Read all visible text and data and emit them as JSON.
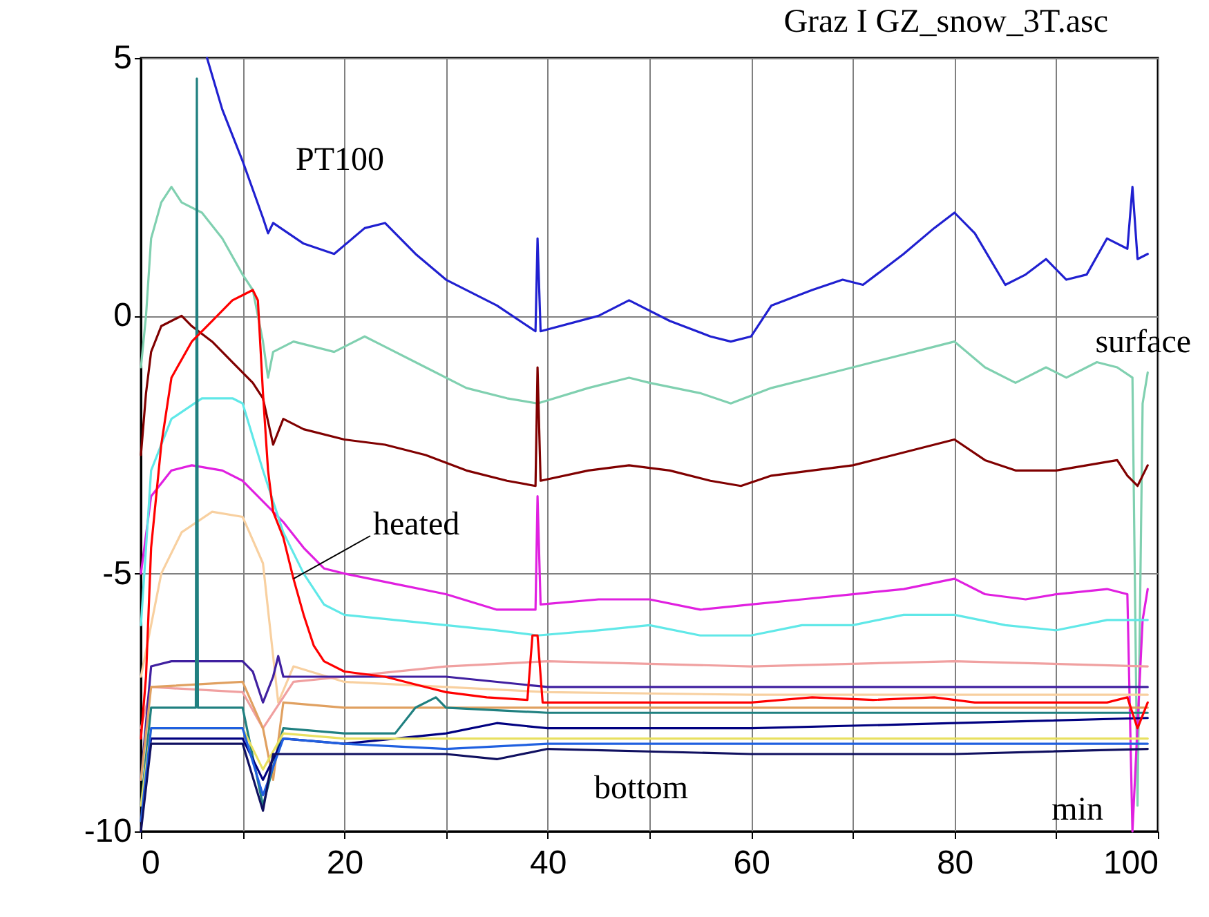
{
  "chart_data": {
    "type": "line",
    "title": "Graz I  GZ_snow_3T.asc",
    "xlabel": "min",
    "xlim": [
      0,
      100
    ],
    "ylim": [
      -10,
      5
    ],
    "xticks": [
      0,
      {
        "value": 10,
        "label": null
      },
      20,
      {
        "value": 30,
        "label": null
      },
      40,
      {
        "value": 50,
        "label": null
      },
      60,
      {
        "value": 70,
        "label": null
      },
      80,
      {
        "value": 90,
        "label": null
      },
      100
    ],
    "yticks": [
      -10,
      -5,
      0,
      5
    ],
    "grid": true,
    "legend": false,
    "marker": "none",
    "line_style": "solid",
    "annotations": [
      "PT100",
      "surface",
      {
        "text": "heated",
        "x": 15,
        "y": -5.1
      },
      "bottom"
    ],
    "series": [
      {
        "color": "#2020d0",
        "x": [
          6.5,
          8,
          10,
          12,
          12.5,
          13,
          16,
          19,
          22,
          24,
          27,
          30,
          35,
          38.8,
          39,
          39.3,
          45,
          48,
          52,
          56,
          58,
          60,
          62,
          66,
          69,
          71,
          75,
          78,
          80,
          82,
          85,
          87,
          89,
          91,
          93,
          95,
          97,
          97.5,
          98,
          99
        ],
        "values": [
          5,
          4,
          3,
          1.9,
          1.6,
          1.8,
          1.4,
          1.2,
          1.7,
          1.8,
          1.2,
          0.7,
          0.2,
          -0.3,
          1.5,
          -0.3,
          0,
          0.3,
          -0.1,
          -0.4,
          -0.5,
          -0.4,
          0.2,
          0.5,
          0.7,
          0.6,
          1.2,
          1.7,
          2.0,
          1.6,
          0.6,
          0.8,
          1.1,
          0.7,
          0.8,
          1.5,
          1.3,
          2.5,
          1.1,
          1.2
        ]
      },
      {
        "color": "#80d0b0",
        "x": [
          0,
          0.5,
          1,
          2,
          3,
          4,
          6,
          8,
          10,
          11,
          12,
          12.5,
          13,
          15,
          19,
          22,
          24,
          28,
          32,
          36,
          39,
          44,
          48,
          50,
          55,
          58,
          62,
          66,
          70,
          74,
          78,
          80,
          83,
          86,
          89,
          91,
          94,
          96,
          97.5,
          98,
          98.5,
          99
        ],
        "values": [
          -1,
          0,
          1.5,
          2.2,
          2.5,
          2.2,
          2.0,
          1.5,
          0.8,
          0.5,
          -0.5,
          -1.2,
          -0.7,
          -0.5,
          -0.7,
          -0.4,
          -0.6,
          -1.0,
          -1.4,
          -1.6,
          -1.7,
          -1.4,
          -1.2,
          -1.3,
          -1.5,
          -1.7,
          -1.4,
          -1.2,
          -1.0,
          -0.8,
          -0.6,
          -0.5,
          -1.0,
          -1.3,
          -1.0,
          -1.2,
          -0.9,
          -1.0,
          -1.2,
          -9.5,
          -1.7,
          -1.1
        ]
      },
      {
        "color": "#800000",
        "x": [
          0,
          0.5,
          1,
          2,
          3,
          4,
          5,
          7,
          9,
          11,
          12,
          13,
          14,
          16,
          20,
          24,
          28,
          32,
          36,
          38.8,
          39,
          39.3,
          44,
          48,
          52,
          56,
          59,
          62,
          66,
          70,
          74,
          78,
          80,
          83,
          86,
          90,
          93,
          96,
          97,
          98,
          99
        ],
        "values": [
          -2.7,
          -1.5,
          -0.7,
          -0.2,
          -0.1,
          0.0,
          -0.2,
          -0.5,
          -0.9,
          -1.3,
          -1.6,
          -2.5,
          -2.0,
          -2.2,
          -2.4,
          -2.5,
          -2.7,
          -3.0,
          -3.2,
          -3.3,
          -1.0,
          -3.2,
          -3.0,
          -2.9,
          -3.0,
          -3.2,
          -3.3,
          -3.1,
          -3.0,
          -2.9,
          -2.7,
          -2.5,
          -2.4,
          -2.8,
          -3.0,
          -3.0,
          -2.9,
          -2.8,
          -3.1,
          -3.3,
          -2.9
        ]
      },
      {
        "color": "#e020e0",
        "x": [
          0,
          1,
          3,
          5,
          8,
          10,
          12,
          14,
          16,
          18,
          20,
          25,
          30,
          35,
          38.8,
          39,
          39.3,
          45,
          50,
          55,
          60,
          65,
          70,
          75,
          80,
          83,
          87,
          90,
          95,
          97,
          97.5,
          98.5,
          99
        ],
        "values": [
          -5,
          -3.5,
          -3.0,
          -2.9,
          -3.0,
          -3.2,
          -3.6,
          -4.0,
          -4.5,
          -4.9,
          -5.0,
          -5.2,
          -5.4,
          -5.7,
          -5.7,
          -3.5,
          -5.6,
          -5.5,
          -5.5,
          -5.7,
          -5.6,
          -5.5,
          -5.4,
          -5.3,
          -5.1,
          -5.4,
          -5.5,
          -5.4,
          -5.3,
          -5.4,
          -10,
          -5.9,
          -5.3
        ]
      },
      {
        "color": "#60e8e8",
        "x": [
          0,
          1,
          3,
          6,
          9,
          10,
          12,
          14,
          16,
          18,
          20,
          25,
          30,
          35,
          39,
          45,
          50,
          55,
          60,
          65,
          70,
          75,
          80,
          85,
          90,
          95,
          99
        ],
        "values": [
          -6,
          -3,
          -2,
          -1.6,
          -1.6,
          -1.7,
          -3.0,
          -4.2,
          -5.0,
          -5.6,
          -5.8,
          -5.9,
          -6.0,
          -6.1,
          -6.2,
          -6.1,
          -6.0,
          -6.2,
          -6.2,
          -6.0,
          -6.0,
          -5.8,
          -5.8,
          -6.0,
          -6.1,
          -5.9,
          -5.9
        ]
      },
      {
        "color": "#f8d0a0",
        "x": [
          0,
          2,
          4,
          7,
          10,
          12,
          13.5,
          15,
          20,
          30,
          40,
          60,
          80,
          99
        ],
        "values": [
          -7,
          -5,
          -4.2,
          -3.8,
          -3.9,
          -4.8,
          -7.5,
          -6.8,
          -7.1,
          -7.2,
          -7.3,
          -7.35,
          -7.35,
          -7.35
        ]
      },
      {
        "color": "#f0a0a0",
        "x": [
          0,
          1,
          10,
          12,
          15,
          20,
          30,
          40,
          60,
          80,
          99
        ],
        "values": [
          -8,
          -7.2,
          -7.3,
          -8,
          -7.1,
          -7.0,
          -6.8,
          -6.7,
          -6.8,
          -6.7,
          -6.8
        ]
      },
      {
        "color": "#4020a0",
        "x": [
          0,
          1,
          3,
          10,
          11,
          12,
          13,
          13.5,
          14,
          20,
          30,
          40,
          60,
          80,
          99
        ],
        "values": [
          -9,
          -6.8,
          -6.7,
          -6.7,
          -6.9,
          -7.5,
          -7.0,
          -6.6,
          -7.0,
          -7.0,
          -7.0,
          -7.2,
          -7.2,
          -7.2,
          -7.2
        ]
      },
      {
        "color": "#e0a060",
        "x": [
          0,
          1,
          10,
          12,
          13,
          14,
          20,
          40,
          60,
          80,
          99
        ],
        "values": [
          -9,
          -7.2,
          -7.1,
          -8.0,
          -9.0,
          -7.5,
          -7.6,
          -7.6,
          -7.6,
          -7.6,
          -7.6
        ]
      },
      {
        "color": "#208080",
        "x": [
          0,
          1,
          5.4,
          5.5,
          5.6,
          10,
          12,
          14,
          20,
          25,
          27,
          29,
          30,
          40,
          60,
          80,
          99
        ],
        "values": [
          -9.5,
          -7.6,
          -7.6,
          4.6,
          -7.6,
          -7.6,
          -9.5,
          -8.0,
          -8.1,
          -8.1,
          -7.6,
          -7.4,
          -7.6,
          -7.7,
          -7.7,
          -7.7,
          -7.7
        ]
      },
      {
        "color": "#000080",
        "x": [
          0,
          1,
          10,
          12,
          14,
          20,
          30,
          35,
          40,
          60,
          80,
          99
        ],
        "values": [
          -9.5,
          -8.2,
          -8.2,
          -9.0,
          -8.2,
          -8.3,
          -8.1,
          -7.9,
          -8.0,
          -8.0,
          -7.9,
          -7.8
        ]
      },
      {
        "color": "#e8e060",
        "x": [
          0,
          1,
          10,
          12,
          14,
          20,
          40,
          60,
          80,
          99
        ],
        "values": [
          -9.5,
          -8.0,
          -8.0,
          -8.8,
          -8.1,
          -8.2,
          -8.2,
          -8.2,
          -8.2,
          -8.2
        ]
      },
      {
        "color": "#2060e0",
        "x": [
          0,
          1,
          10,
          12,
          14,
          20,
          30,
          40,
          60,
          80,
          99
        ],
        "values": [
          -9.8,
          -8.0,
          -8.0,
          -9.3,
          -8.2,
          -8.3,
          -8.4,
          -8.3,
          -8.3,
          -8.3,
          -8.3
        ]
      },
      {
        "color": "#101060",
        "x": [
          0,
          1,
          10,
          12,
          13,
          20,
          30,
          35,
          40,
          60,
          80,
          99
        ],
        "values": [
          -10,
          -8.3,
          -8.3,
          -9.6,
          -8.5,
          -8.5,
          -8.5,
          -8.6,
          -8.4,
          -8.5,
          -8.5,
          -8.4
        ]
      },
      {
        "color": "#ff0000",
        "x": [
          0,
          0.5,
          1,
          2,
          3,
          5,
          7,
          9,
          10,
          11,
          11.5,
          12,
          12.5,
          13,
          14,
          15,
          16,
          17,
          18,
          20,
          24,
          28,
          30,
          34,
          38,
          38.5,
          39,
          39.5,
          44,
          50,
          56,
          60,
          66,
          72,
          78,
          82,
          86,
          90,
          95,
          97,
          98,
          99
        ],
        "values": [
          -8.2,
          -7,
          -4.5,
          -2.5,
          -1.2,
          -0.5,
          -0.1,
          0.3,
          0.4,
          0.5,
          0.3,
          -1.5,
          -3,
          -3.8,
          -4.3,
          -5.1,
          -5.8,
          -6.4,
          -6.7,
          -6.9,
          -7.0,
          -7.2,
          -7.3,
          -7.4,
          -7.45,
          -6.2,
          -6.2,
          -7.5,
          -7.5,
          -7.5,
          -7.5,
          -7.5,
          -7.4,
          -7.45,
          -7.4,
          -7.5,
          -7.5,
          -7.5,
          -7.5,
          -7.4,
          -8,
          -7.5
        ]
      }
    ]
  }
}
